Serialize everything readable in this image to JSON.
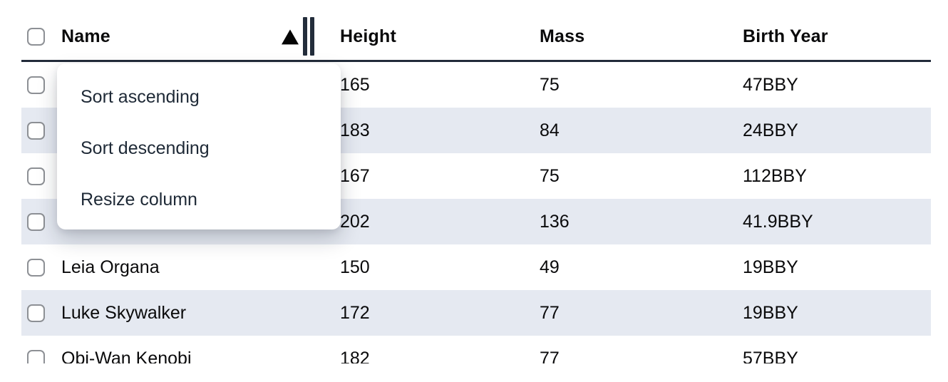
{
  "table": {
    "columns": [
      {
        "key": "name",
        "label": "Name",
        "sort": "ascending"
      },
      {
        "key": "height",
        "label": "Height",
        "sort": null
      },
      {
        "key": "mass",
        "label": "Mass",
        "sort": null
      },
      {
        "key": "birth_year",
        "label": "Birth Year",
        "sort": null
      }
    ],
    "rows": [
      {
        "name": "",
        "height": "165",
        "mass": "75",
        "birth_year": "47BBY",
        "striped": false,
        "name_hidden_by_menu": true
      },
      {
        "name": "",
        "height": "183",
        "mass": "84",
        "birth_year": "24BBY",
        "striped": true,
        "name_hidden_by_menu": true
      },
      {
        "name": "",
        "height": "167",
        "mass": "75",
        "birth_year": "112BBY",
        "striped": false,
        "name_hidden_by_menu": true
      },
      {
        "name": "",
        "height": "202",
        "mass": "136",
        "birth_year": "41.9BBY",
        "striped": true,
        "name_hidden_by_menu": true
      },
      {
        "name": "Leia Organa",
        "height": "150",
        "mass": "49",
        "birth_year": "19BBY",
        "striped": false,
        "name_hidden_by_menu": false
      },
      {
        "name": "Luke Skywalker",
        "height": "172",
        "mass": "77",
        "birth_year": "19BBY",
        "striped": true,
        "name_hidden_by_menu": false
      },
      {
        "name": "Obi-Wan Kenobi",
        "height": "182",
        "mass": "77",
        "birth_year": "57BBY",
        "striped": false,
        "name_hidden_by_menu": false
      }
    ],
    "checkboxes_checked": false
  },
  "context_menu": {
    "attached_column": "Name",
    "items": [
      {
        "label": "Sort ascending"
      },
      {
        "label": "Sort descending"
      },
      {
        "label": "Resize column"
      }
    ]
  },
  "icons": {
    "sort_ascending_indicator": "triangle-up",
    "resize_handle": "double-vertical-bars"
  },
  "colors": {
    "row_stripe": "#e5e9f1",
    "header_border": "#222b3a",
    "menu_text": "#1e2936",
    "checkbox_border": "#8d9095"
  }
}
